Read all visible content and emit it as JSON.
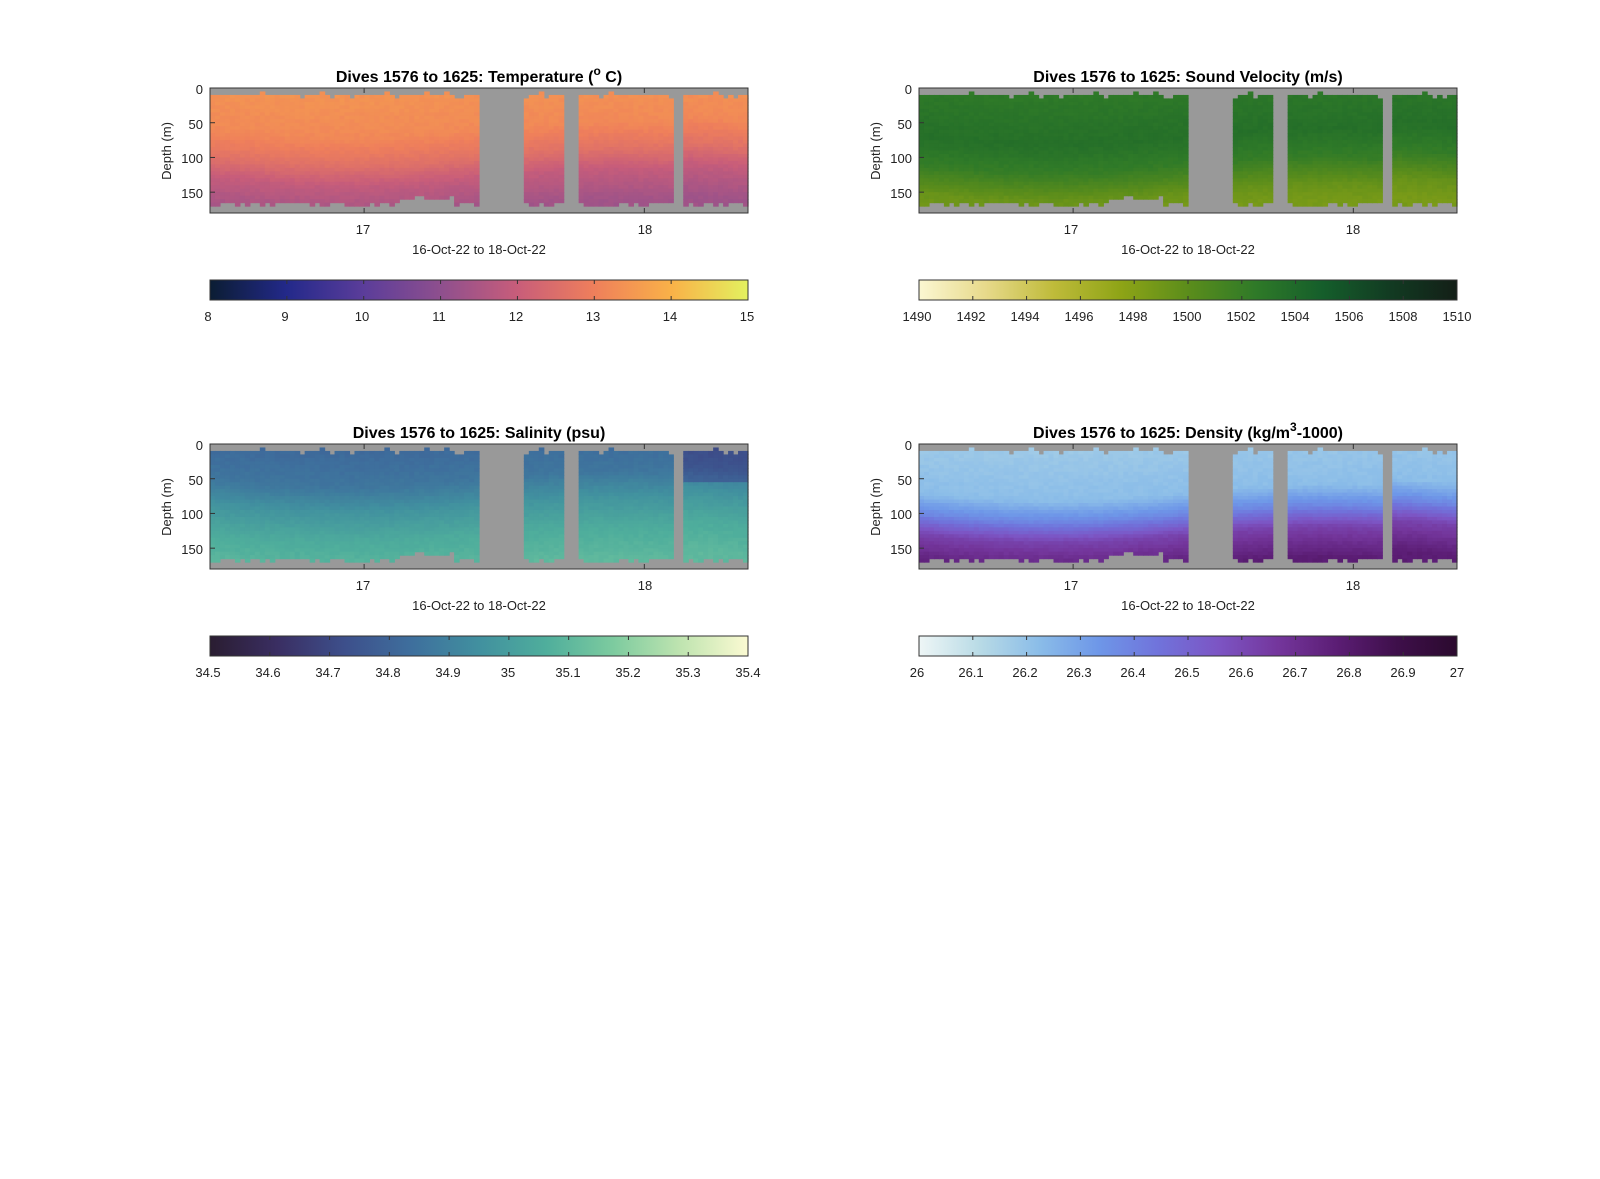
{
  "chart_data": [
    {
      "type": "heatmap",
      "title_main": "Dives 1576 to 1625: Temperature (",
      "title_sup": "o",
      "title_end": " C)",
      "xlabel": "16-Oct-22 to 18-Oct-22",
      "ylabel": "Depth (m)",
      "xticks": [
        "17",
        "18"
      ],
      "xrange_days": [
        16.45,
        18.37
      ],
      "xtick_days": [
        17,
        18
      ],
      "yticks": [
        "0",
        "50",
        "100",
        "150"
      ],
      "ylim": [
        0,
        180
      ],
      "colorbar_ticks": [
        "8",
        "9",
        "10",
        "11",
        "12",
        "13",
        "14",
        "15"
      ],
      "colorbar_range": [
        8,
        15
      ],
      "colormap": [
        "#0b1d33",
        "#23298a",
        "#5b3d9a",
        "#8e4f8e",
        "#c85d7a",
        "#ef7f5b",
        "#f9b148",
        "#e3f15f"
      ],
      "profile": [
        {
          "depth": 0,
          "value": 13.4
        },
        {
          "depth": 60,
          "value": 13.2
        },
        {
          "depth": 100,
          "value": 12.6
        },
        {
          "depth": 130,
          "value": 11.9
        },
        {
          "depth": 175,
          "value": 11.3
        }
      ]
    },
    {
      "type": "heatmap",
      "title_main": "Dives 1576 to 1625: Sound Velocity (m/s)",
      "title_sup": "",
      "title_end": "",
      "xlabel": "16-Oct-22 to 18-Oct-22",
      "ylabel": "Depth (m)",
      "xticks": [
        "17",
        "18"
      ],
      "xrange_days": [
        16.45,
        18.37
      ],
      "xtick_days": [
        17,
        18
      ],
      "yticks": [
        "0",
        "50",
        "100",
        "150"
      ],
      "ylim": [
        0,
        180
      ],
      "colorbar_ticks": [
        "1490",
        "1492",
        "1494",
        "1496",
        "1498",
        "1500",
        "1502",
        "1504",
        "1506",
        "1508",
        "1510"
      ],
      "colorbar_range": [
        1490,
        1510
      ],
      "colormap": [
        "#fbf7d2",
        "#e7d98a",
        "#bfbb3a",
        "#8ea416",
        "#5b8d1b",
        "#2f7a28",
        "#155e2b",
        "#123b22",
        "#131f17"
      ],
      "profile": [
        {
          "depth": 0,
          "value": 1502.6
        },
        {
          "depth": 70,
          "value": 1503.4
        },
        {
          "depth": 110,
          "value": 1502.2
        },
        {
          "depth": 150,
          "value": 1499.4
        },
        {
          "depth": 175,
          "value": 1498.6
        }
      ]
    },
    {
      "type": "heatmap",
      "title_main": "Dives 1576 to 1625: Salinity (psu)",
      "title_sup": "",
      "title_end": "",
      "xlabel": "16-Oct-22 to 18-Oct-22",
      "ylabel": "Depth (m)",
      "xticks": [
        "17",
        "18"
      ],
      "xrange_days": [
        16.45,
        18.37
      ],
      "xtick_days": [
        17,
        18
      ],
      "yticks": [
        "0",
        "50",
        "100",
        "150"
      ],
      "ylim": [
        0,
        180
      ],
      "colorbar_ticks": [
        "34.5",
        "34.6",
        "34.7",
        "34.8",
        "34.9",
        "35",
        "35.1",
        "35.2",
        "35.3",
        "35.4"
      ],
      "colorbar_range": [
        34.5,
        35.4
      ],
      "colormap": [
        "#2a1d31",
        "#3a2e62",
        "#3d4f8b",
        "#3e6f9d",
        "#41909f",
        "#4fae9c",
        "#7dcb9f",
        "#bfe4b0",
        "#fbfad2"
      ],
      "profile": [
        {
          "depth": 0,
          "value": 34.82
        },
        {
          "depth": 50,
          "value": 34.86
        },
        {
          "depth": 90,
          "value": 34.97
        },
        {
          "depth": 130,
          "value": 35.05
        },
        {
          "depth": 175,
          "value": 35.1
        }
      ]
    },
    {
      "type": "heatmap",
      "title_main": "Dives 1576 to 1625: Density (kg/m",
      "title_sup": "3",
      "title_end": "-1000)",
      "xlabel": "16-Oct-22 to 18-Oct-22",
      "ylabel": "Depth (m)",
      "xticks": [
        "17",
        "18"
      ],
      "xrange_days": [
        16.45,
        18.37
      ],
      "xtick_days": [
        17,
        18
      ],
      "yticks": [
        "0",
        "50",
        "100",
        "150"
      ],
      "ylim": [
        0,
        180
      ],
      "colorbar_ticks": [
        "26",
        "26.1",
        "26.2",
        "26.3",
        "26.4",
        "26.5",
        "26.6",
        "26.7",
        "26.8",
        "26.9",
        "27"
      ],
      "colorbar_range": [
        26,
        27
      ],
      "colormap": [
        "#eef6f6",
        "#b9dbe6",
        "#8bbde8",
        "#6e97e8",
        "#7073db",
        "#7c55c4",
        "#74369c",
        "#5b1d74",
        "#3e0f4a",
        "#2b0a2e"
      ],
      "profile": [
        {
          "depth": 0,
          "value": 26.18
        },
        {
          "depth": 70,
          "value": 26.22
        },
        {
          "depth": 100,
          "value": 26.38
        },
        {
          "depth": 130,
          "value": 26.62
        },
        {
          "depth": 175,
          "value": 26.78
        }
      ]
    }
  ]
}
